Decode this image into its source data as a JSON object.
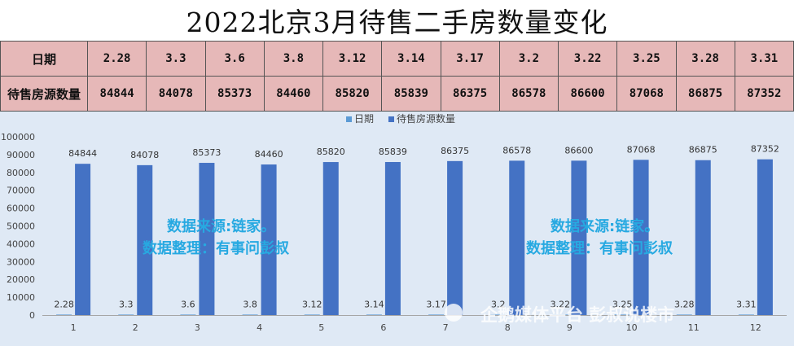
{
  "title": "2022北京3月待售二手房数量变化",
  "table": {
    "row1_header": "日期",
    "row2_header": "待售房源数量",
    "dates": [
      "2.28",
      "3.3",
      "3.6",
      "3.8",
      "3.12",
      "3.14",
      "3.17",
      "3.2",
      "3.22",
      "3.25",
      "3.28",
      "3.31"
    ],
    "counts": [
      "84844",
      "84078",
      "85373",
      "84460",
      "85820",
      "85839",
      "86375",
      "86578",
      "86600",
      "87068",
      "86875",
      "87352"
    ]
  },
  "watermark": {
    "line1": "数据来源:链家。",
    "line2": "数据整理：有事问彭叔",
    "footer": "企鹅媒体平台 彭叔说楼市"
  },
  "colors": {
    "table_bg": "#e6b8b8",
    "chart_bg": "#dfe9f5",
    "series_date": "#5b9bd5",
    "series_count": "#4472c4",
    "watermark": "#27a9e1"
  },
  "chart_data": {
    "type": "bar",
    "categories": [
      "1",
      "2",
      "3",
      "4",
      "5",
      "6",
      "7",
      "8",
      "9",
      "10",
      "11",
      "12"
    ],
    "series": [
      {
        "name": "日期",
        "values": [
          2.28,
          3.3,
          3.6,
          3.8,
          3.12,
          3.14,
          3.17,
          3.2,
          3.22,
          3.25,
          3.28,
          3.31
        ],
        "labels": [
          "2.28",
          "3.3",
          "3.6",
          "3.8",
          "3.12",
          "3.14",
          "3.17",
          "3.2",
          "3.22",
          "3.25",
          "3.28",
          "3.31"
        ]
      },
      {
        "name": "待售房源数量",
        "values": [
          84844,
          84078,
          85373,
          84460,
          85820,
          85839,
          86375,
          86578,
          86600,
          87068,
          86875,
          87352
        ],
        "labels": [
          "84844",
          "84078",
          "85373",
          "84460",
          "85820",
          "85839",
          "86375",
          "86578",
          "86600",
          "87068",
          "86875",
          "87352"
        ]
      }
    ],
    "yticks": [
      "0",
      "10000",
      "20000",
      "30000",
      "40000",
      "50000",
      "60000",
      "70000",
      "80000",
      "90000",
      "100000"
    ],
    "ylim": [
      0,
      100000
    ],
    "legend": "top-center",
    "grid": false
  }
}
